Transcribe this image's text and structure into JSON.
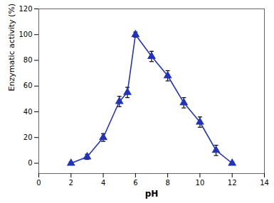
{
  "chart_data": {
    "type": "line",
    "x": [
      2,
      3,
      4,
      5,
      5.5,
      6,
      7,
      8,
      9,
      10,
      11,
      12
    ],
    "values": [
      0,
      5,
      20,
      48,
      55,
      100,
      83,
      68,
      47,
      32,
      10,
      0
    ],
    "yerr": [
      1,
      2,
      3,
      4,
      4,
      2,
      4,
      4,
      4,
      4,
      4,
      1
    ],
    "color": "#2233BB",
    "marker": "triangle",
    "xlabel": "pH",
    "ylabel": "Enzymatic activity (%)",
    "xlim": [
      0,
      14
    ],
    "ylim": [
      -8,
      120
    ],
    "xticks": [
      0,
      2,
      4,
      6,
      8,
      10,
      12,
      14
    ],
    "yticks": [
      0,
      20,
      40,
      60,
      80,
      100,
      120
    ],
    "grid": false
  }
}
